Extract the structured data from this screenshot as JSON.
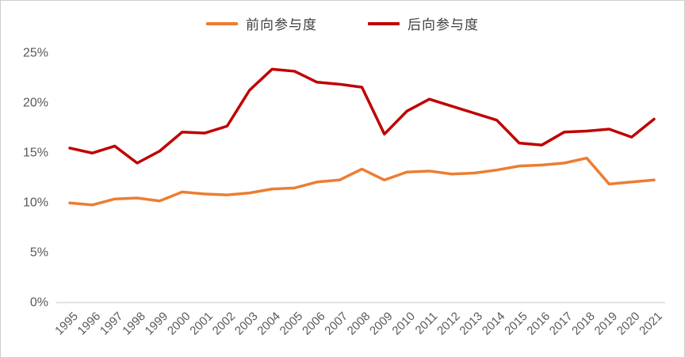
{
  "colors": {
    "forward_series": "#ED7D31",
    "backward_series": "#C00000",
    "axis_line": "#D9D9D9",
    "tick_label": "#595959",
    "legend_text": "#404040",
    "frame_border": "#CFCFCF",
    "background": "#FFFFFF"
  },
  "chart_data": {
    "type": "line",
    "title": "",
    "xlabel": "",
    "ylabel": "",
    "grid": false,
    "legend_position": "top-center",
    "ylim": [
      0,
      25
    ],
    "yticks": [
      "0%",
      "5%",
      "10%",
      "15%",
      "20%",
      "25%"
    ],
    "categories": [
      "1995",
      "1996",
      "1997",
      "1998",
      "1999",
      "2000",
      "2001",
      "2002",
      "2003",
      "2004",
      "2005",
      "2006",
      "2007",
      "2008",
      "2009",
      "2010",
      "2011",
      "2012",
      "2013",
      "2014",
      "2015",
      "2016",
      "2017",
      "2018",
      "2019",
      "2020",
      "2021"
    ],
    "series": [
      {
        "name": "前向参与度",
        "color": "#ED7D31",
        "values": [
          9.9,
          9.7,
          10.3,
          10.4,
          10.1,
          11.0,
          10.8,
          10.7,
          10.9,
          11.3,
          11.4,
          12.0,
          12.2,
          13.3,
          12.2,
          13.0,
          13.1,
          12.8,
          12.9,
          13.2,
          13.6,
          13.7,
          13.9,
          14.4,
          11.8,
          12.0,
          12.2
        ]
      },
      {
        "name": "后向参与度",
        "color": "#C00000",
        "values": [
          15.4,
          14.9,
          15.6,
          13.9,
          15.1,
          17.0,
          16.9,
          17.6,
          21.2,
          23.3,
          23.1,
          22.0,
          21.8,
          21.5,
          16.8,
          19.1,
          20.3,
          19.6,
          18.9,
          18.2,
          15.9,
          15.7,
          17.0,
          17.1,
          17.3,
          16.5,
          18.3
        ]
      }
    ]
  }
}
